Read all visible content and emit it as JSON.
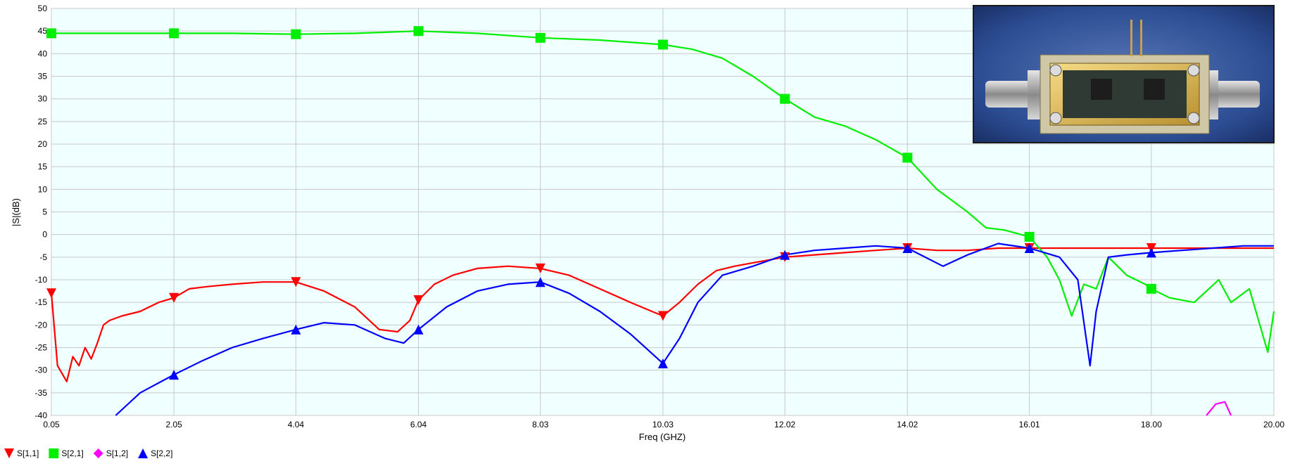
{
  "chart_data": {
    "type": "line",
    "xlabel": "Freq (GHZ)",
    "ylabel": "|S|(dB)",
    "xlim": [
      0.05,
      20.0
    ],
    "ylim": [
      -40,
      50
    ],
    "x_ticks": [
      "0.05",
      "2.05",
      "4.04",
      "6.04",
      "8.03",
      "10.03",
      "12.02",
      "14.02",
      "16.01",
      "18.00",
      "20.00"
    ],
    "y_ticks": [
      "50",
      "45",
      "40",
      "35",
      "30",
      "25",
      "20",
      "15",
      "10",
      "5",
      "0",
      "-5",
      "-10",
      "-15",
      "-20",
      "-25",
      "-30",
      "-35",
      "-40"
    ],
    "grid": true,
    "legend_position": "bottom-left",
    "plot_background": "#f0ffff",
    "inset": "photo of RF amplifier module with SMA connectors",
    "series": [
      {
        "name": "S[1,1]",
        "color": "#ff0000",
        "marker": "triangle-down",
        "x": [
          0.05,
          0.15,
          0.3,
          0.4,
          0.5,
          0.6,
          0.7,
          0.8,
          0.9,
          1.0,
          1.2,
          1.5,
          1.8,
          2.05,
          2.3,
          2.6,
          3.0,
          3.5,
          4.04,
          4.5,
          5.0,
          5.4,
          5.7,
          5.9,
          6.04,
          6.3,
          6.6,
          7.0,
          7.5,
          8.03,
          8.5,
          9.0,
          9.5,
          10.03,
          10.3,
          10.6,
          10.9,
          11.2,
          11.6,
          12.02,
          12.5,
          13.0,
          13.5,
          14.02,
          14.5,
          15.0,
          15.5,
          16.01,
          16.5,
          17.0,
          17.5,
          18.0,
          18.5,
          19.0,
          19.5,
          20.0
        ],
        "values": [
          -13,
          -29,
          -32.5,
          -27,
          -29,
          -25,
          -27.5,
          -24,
          -20,
          -19,
          -18,
          -17,
          -15,
          -14,
          -12,
          -11.5,
          -11,
          -10.5,
          -10.5,
          -12.5,
          -16,
          -21,
          -21.5,
          -19,
          -14.5,
          -11,
          -9,
          -7.5,
          -7,
          -7.5,
          -9,
          -12,
          -15,
          -18,
          -15,
          -11,
          -8,
          -7,
          -6,
          -5,
          -4.5,
          -4,
          -3.5,
          -3,
          -3.5,
          -3.5,
          -3,
          -3,
          -3,
          -3,
          -3,
          -3,
          -3,
          -3,
          -3,
          -3
        ]
      },
      {
        "name": "S[2,1]",
        "color": "#00ee00",
        "marker": "square",
        "x": [
          0.05,
          1.0,
          2.05,
          3.0,
          4.04,
          5.0,
          6.04,
          7.0,
          8.03,
          9.0,
          10.03,
          10.5,
          11.0,
          11.5,
          12.02,
          12.5,
          13.0,
          13.5,
          14.02,
          14.5,
          15.0,
          15.3,
          15.6,
          16.01,
          16.3,
          16.5,
          16.7,
          16.9,
          17.1,
          17.3,
          17.6,
          17.9,
          18.0,
          18.3,
          18.7,
          19.1,
          19.3,
          19.6,
          19.9,
          20.0
        ],
        "values": [
          44.5,
          44.5,
          44.5,
          44.5,
          44.3,
          44.5,
          45,
          44.5,
          43.5,
          43,
          42,
          41,
          39,
          35,
          30,
          26,
          24,
          21,
          17,
          10,
          5,
          1.5,
          1,
          -0.5,
          -5,
          -10,
          -18,
          -11,
          -12,
          -5,
          -9,
          -11,
          -12,
          -14,
          -15,
          -10,
          -15,
          -12,
          -26,
          -17
        ]
      },
      {
        "name": "S[1,2]",
        "color": "#ff00ff",
        "marker": "diamond",
        "x": [
          18.9,
          19.05,
          19.2,
          19.3
        ],
        "values": [
          -40,
          -37.5,
          -37,
          -40
        ]
      },
      {
        "name": "S[2,2]",
        "color": "#0000ff",
        "marker": "triangle-up",
        "x": [
          1.1,
          1.5,
          2.05,
          2.5,
          3.0,
          3.5,
          4.04,
          4.5,
          5.0,
          5.5,
          5.8,
          6.04,
          6.5,
          7.0,
          7.5,
          8.03,
          8.5,
          9.0,
          9.5,
          10.03,
          10.3,
          10.6,
          11.0,
          11.5,
          12.02,
          12.5,
          13.0,
          13.5,
          14.02,
          14.6,
          15.0,
          15.5,
          16.01,
          16.5,
          16.8,
          17.0,
          17.1,
          17.3,
          17.6,
          18.0,
          18.5,
          19.0,
          19.5,
          20.0
        ],
        "values": [
          -40,
          -35,
          -31,
          -28,
          -25,
          -23,
          -21,
          -19.5,
          -20,
          -23,
          -24,
          -21,
          -16,
          -12.5,
          -11,
          -10.5,
          -13,
          -17,
          -22,
          -28.5,
          -23,
          -15,
          -9,
          -7,
          -4.5,
          -3.5,
          -3,
          -2.5,
          -3,
          -7,
          -4.5,
          -2,
          -3,
          -5,
          -10,
          -29,
          -17,
          -5,
          -4.5,
          -4,
          -3.5,
          -3,
          -2.5,
          -2.5
        ]
      }
    ]
  }
}
